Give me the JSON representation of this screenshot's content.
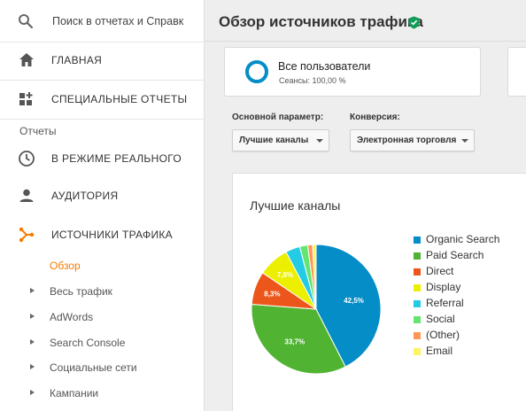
{
  "search": {
    "placeholder": "Поиск в отчетах и Справк"
  },
  "nav": {
    "home": "ГЛАВНАЯ",
    "custom_reports": "СПЕЦИАЛЬНЫЕ ОТЧЕТЫ",
    "reports_section": "Отчеты",
    "realtime": "В РЕЖИМЕ РЕАЛЬНОГО",
    "audience": "АУДИТОРИЯ",
    "acquisition": "ИСТОЧНИКИ ТРАФИКА",
    "sub_items": [
      "Обзор",
      "Весь трафик",
      "AdWords",
      "Search Console",
      "Социальные сети",
      "Кампании"
    ]
  },
  "page": {
    "title": "Обзор источников трафика",
    "segment_name": "Все пользователи",
    "segment_info": "Сеансы: 100,00 %"
  },
  "controls": {
    "primary_dimension_label": "Основной параметр:",
    "primary_dimension_value": "Лучшие каналы",
    "conversion_label": "Конверсия:",
    "conversion_value": "Электронная торговля"
  },
  "colors": {
    "accent": "#f57c00",
    "verified": "#0f9d58",
    "segment_ring": "#058dc7"
  },
  "chart_data": {
    "type": "pie",
    "title": "Лучшие каналы",
    "legend_position": "right",
    "categories": [
      "Organic Search",
      "Paid Search",
      "Direct",
      "Display",
      "Referral",
      "Social",
      "(Other)",
      "Email"
    ],
    "values": [
      42.5,
      33.7,
      8.3,
      7.8,
      3.6,
      2.0,
      1.2,
      0.9
    ],
    "data_labels": [
      "42,5%",
      "33,7%",
      "8,3%",
      "7,8%",
      "",
      "",
      "",
      ""
    ],
    "colors": [
      "#058dc7",
      "#50b432",
      "#ed561b",
      "#edef00",
      "#24cbe5",
      "#64e572",
      "#ff9655",
      "#fff263"
    ]
  }
}
